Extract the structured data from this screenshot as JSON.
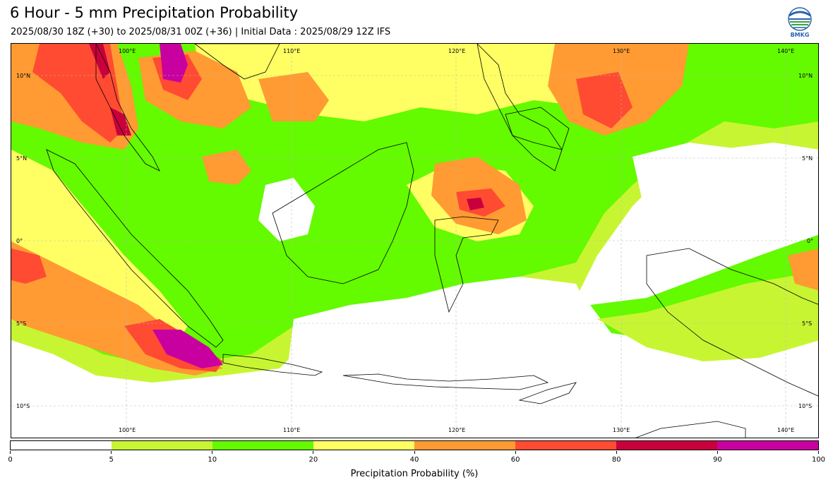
{
  "header": {
    "title": "6 Hour - 5 mm Precipitation Probability",
    "subtitle": "2025/08/30 18Z (+30) to 2025/08/31 00Z (+36) | Initial Data : 2025/08/29 12Z IFS",
    "logo_text": "BMKG"
  },
  "map": {
    "lon_labels": [
      "100°E",
      "110°E",
      "120°E",
      "130°E",
      "140°E"
    ],
    "lat_labels": [
      "10°N",
      "5°N",
      "0°",
      "5°S",
      "10°S"
    ]
  },
  "colorbar": {
    "label": "Precipitation Probability (%)",
    "ticks": [
      "0",
      "5",
      "10",
      "20",
      "40",
      "60",
      "80",
      "90",
      "100"
    ],
    "colors": [
      "#ffffff",
      "#c8f532",
      "#64fa00",
      "#ffff64",
      "#ff9b32",
      "#ff4b32",
      "#c8003c",
      "#c800a0"
    ]
  }
}
